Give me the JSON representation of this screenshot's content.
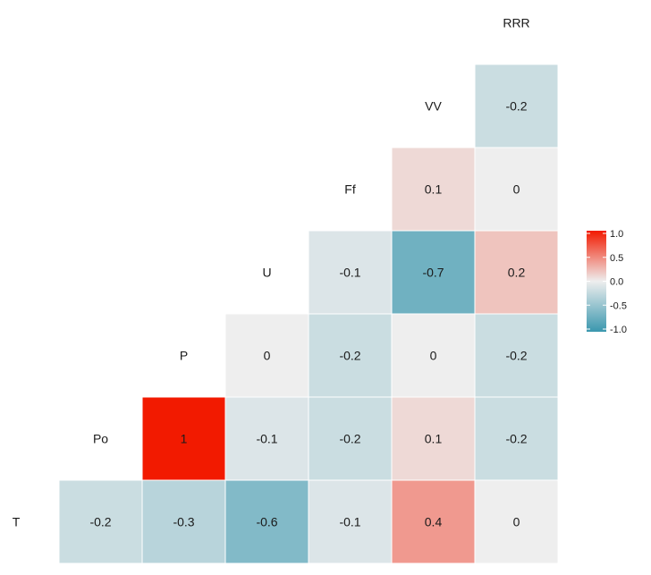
{
  "chart_data": {
    "type": "heatmap",
    "variables": [
      "T",
      "Po",
      "P",
      "U",
      "Ff",
      "VV",
      "RRR"
    ],
    "matrix_lower": [
      [],
      [
        -0.2
      ],
      [
        -0.3,
        1
      ],
      [
        -0.6,
        -0.1,
        0
      ],
      [
        -0.1,
        -0.2,
        -0.2,
        -0.1
      ],
      [
        0.4,
        0.1,
        0,
        -0.7,
        0.1
      ],
      [
        0,
        -0.2,
        -0.2,
        0.2,
        0,
        -0.2
      ]
    ],
    "color_scale": {
      "min": -1.0,
      "max": 1.0,
      "low_color": "#3A97AE",
      "mid_color": "#EEEEEE",
      "high_color": "#F21A00",
      "ticks": [
        "1.0",
        "0.5",
        "0.0",
        "-0.5",
        "-1.0"
      ]
    },
    "legend_placement": "right",
    "grid": false
  }
}
